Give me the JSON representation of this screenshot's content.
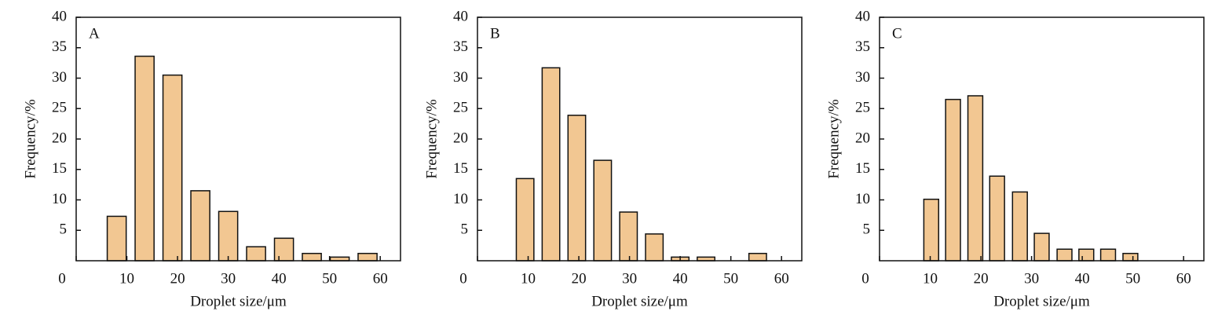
{
  "chart_data": [
    {
      "type": "bar",
      "panel_label": "A",
      "x_label": "Droplet size/μm",
      "y_label": "Frequency/%",
      "x": [
        8,
        13.5,
        19,
        24.5,
        30,
        35.5,
        41,
        46.5,
        52,
        57.5
      ],
      "values": [
        7.3,
        33.6,
        30.5,
        11.5,
        8.1,
        2.3,
        3.7,
        1.2,
        0.6,
        1.2
      ],
      "color": "#f2c792",
      "xlim": [
        0,
        64
      ],
      "ylim": [
        0,
        40
      ],
      "xticks": [
        0,
        10,
        20,
        30,
        40,
        50,
        60
      ],
      "yticks": [
        5,
        10,
        15,
        20,
        25,
        30,
        35,
        40
      ]
    },
    {
      "type": "bar",
      "panel_label": "B",
      "x_label": "Droplet size/μm",
      "y_label": "Frequency/%",
      "x": [
        9.4,
        14.5,
        19.6,
        24.7,
        29.8,
        34.9,
        40,
        45.1,
        55.3
      ],
      "values": [
        13.5,
        31.7,
        23.9,
        16.5,
        8,
        4.4,
        0.6,
        0.6,
        1.2
      ],
      "color": "#f2c792",
      "xlim": [
        0,
        64
      ],
      "ylim": [
        0,
        40
      ],
      "xticks": [
        0,
        10,
        20,
        30,
        40,
        50,
        60
      ],
      "yticks": [
        5,
        10,
        15,
        20,
        25,
        30,
        35,
        40
      ]
    },
    {
      "type": "bar",
      "panel_label": "C",
      "x_label": "Droplet size/μm",
      "y_label": "Frequency/%",
      "x": [
        10.2,
        14.5,
        18.9,
        23.2,
        27.7,
        32,
        36.5,
        40.8,
        45.1,
        49.5
      ],
      "values": [
        10.1,
        26.5,
        27.1,
        13.9,
        11.3,
        4.5,
        1.9,
        1.9,
        1.9,
        1.2
      ],
      "color": "#f2c792",
      "xlim": [
        0,
        64
      ],
      "ylim": [
        0,
        40
      ],
      "xticks": [
        0,
        10,
        20,
        30,
        40,
        50,
        60
      ],
      "yticks": [
        5,
        10,
        15,
        20,
        25,
        30,
        35,
        40
      ]
    }
  ]
}
